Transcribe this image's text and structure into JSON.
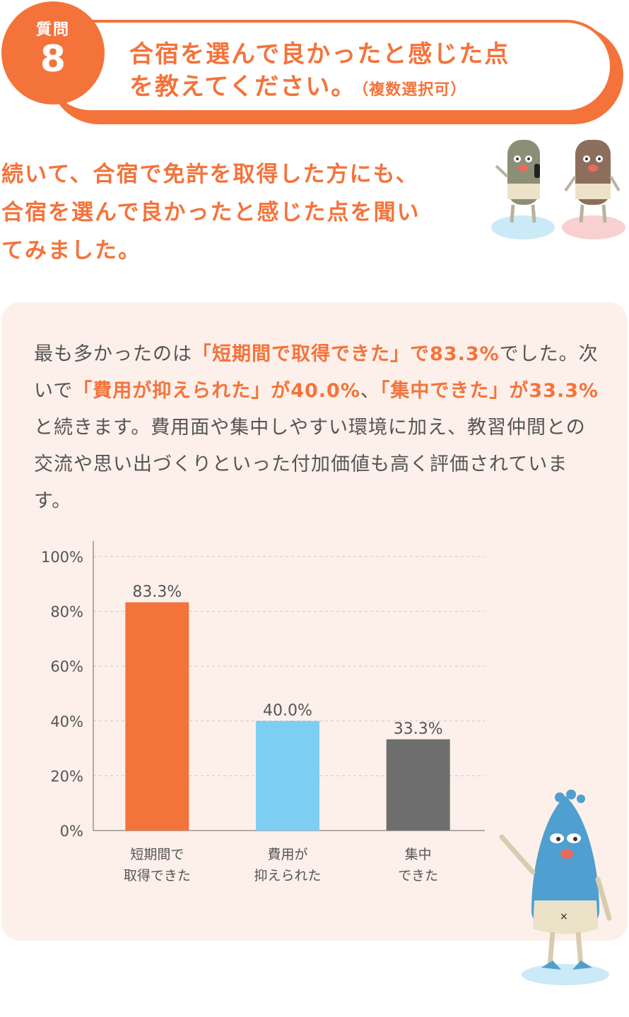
{
  "header": {
    "badge_label": "質問",
    "badge_number": "8",
    "title_line1": "合宿を選んで良かったと感じた点",
    "title_line2": "を教えてください。",
    "title_note": "（複数選択可）"
  },
  "intro": {
    "line1": "続いて、合宿で免許を取得した方にも、",
    "line2": "合宿を選んで良かったと感じた点を聞い",
    "line3": "てみました。"
  },
  "body": {
    "p1": "最も多かったのは",
    "h1": "「短期間で取得できた」で83.3%",
    "p2": "でした。次いで",
    "h2": "「費用が抑えられた」が40.0%",
    "p3": "、",
    "h3": "「集中できた」が33.3%",
    "p4": "と続きます。費用面や集中しやすい環境に加え、教習仲間との交流や思い出づくりといった付加価値も高く評価されています。"
  },
  "chart_data": {
    "type": "bar",
    "categories": [
      [
        "短期間で",
        "取得できた"
      ],
      [
        "費用が",
        "抑えられた"
      ],
      [
        "集中",
        "できた"
      ]
    ],
    "values": [
      83.3,
      40.0,
      33.3
    ],
    "value_labels": [
      "83.3%",
      "40.0%",
      "33.3%"
    ],
    "colors": [
      "#f4733b",
      "#7ecef3",
      "#6e6e6e"
    ],
    "yticks": [
      "0%",
      "20%",
      "40%",
      "60%",
      "80%",
      "100%"
    ],
    "ylim": [
      0,
      100
    ],
    "grid": true,
    "title": "",
    "xlabel": "",
    "ylabel": ""
  }
}
